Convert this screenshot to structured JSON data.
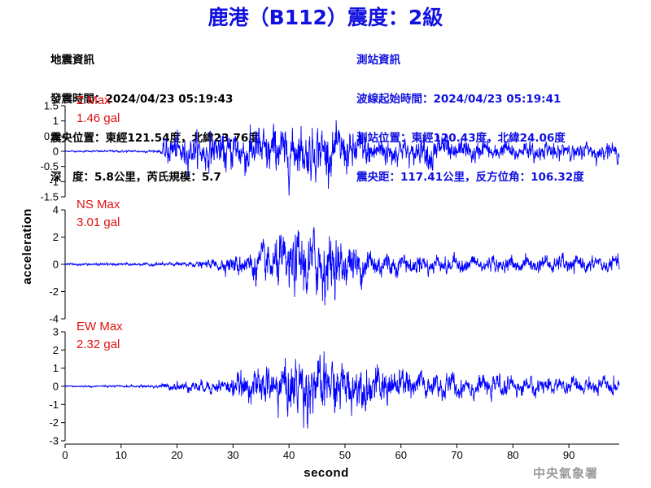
{
  "title": "鹿港（B112）震度：2級",
  "info_left": {
    "heading": "地震資訊",
    "origin_time": "發震時間：2024/04/23 05:19:43",
    "epicenter": "震央位置：東經121.54度，北緯23.76度",
    "depth_magnitude": "深　度：5.8公里，芮氏規模：5.7"
  },
  "info_right": {
    "heading": "測站資訊",
    "wave_start": "波線起始時間：2024/04/23 05:19:41",
    "station_location": "測站位置：東經120.43度，北緯24.06度",
    "distance_azimuth": "震央距：117.41公里，反方位角：106.32度"
  },
  "footer_mark": "中央氣象署",
  "chart_data": {
    "type": "line",
    "xlabel": "second",
    "ylabel": "acceleration",
    "xlim": [
      0,
      99
    ],
    "x_ticks": [
      0,
      10,
      20,
      30,
      40,
      50,
      60,
      70,
      80,
      90
    ],
    "line_color": "#0000ff",
    "panels": [
      {
        "name": "Z",
        "label_line1": "Z Max",
        "label_line2": "1.46 gal",
        "peak": 1.46,
        "ylim": [
          -1.5,
          1.5
        ],
        "y_ticks": [
          1.5,
          1,
          0.5,
          0,
          -0.5,
          -1,
          -1.5
        ],
        "y_tick_labels": [
          "1.5",
          "1",
          "0.5",
          "0",
          "-0.5",
          "-1",
          "-1.5"
        ],
        "envelope_t": [
          0,
          17,
          18,
          22,
          30,
          35,
          45,
          55,
          62,
          66,
          70,
          80,
          90,
          99
        ],
        "envelope_a": [
          0.03,
          0.05,
          0.6,
          0.6,
          0.8,
          0.95,
          1.0,
          0.65,
          0.45,
          0.75,
          0.4,
          0.35,
          0.35,
          0.3
        ]
      },
      {
        "name": "NS",
        "label_line1": "NS Max",
        "label_line2": "3.01 gal",
        "peak": 3.01,
        "ylim": [
          -4,
          4
        ],
        "y_ticks": [
          4,
          2,
          0,
          -2,
          -4
        ],
        "y_tick_labels": [
          "4",
          "2",
          "0",
          "-2",
          "-4"
        ],
        "envelope_t": [
          0,
          17,
          25,
          32,
          38,
          45,
          50,
          55,
          60,
          70,
          80,
          90,
          99
        ],
        "envelope_a": [
          0.08,
          0.12,
          0.25,
          0.9,
          1.8,
          2.6,
          1.6,
          1.2,
          0.7,
          0.6,
          0.5,
          0.6,
          0.5
        ]
      },
      {
        "name": "EW",
        "label_line1": "EW Max",
        "label_line2": "2.32 gal",
        "peak": 2.32,
        "ylim": [
          -3,
          3
        ],
        "y_ticks": [
          3,
          2,
          1,
          0,
          -1,
          -2,
          -3
        ],
        "y_tick_labels": [
          "3",
          "2",
          "1",
          "0",
          "-1",
          "-2",
          "-3"
        ],
        "envelope_t": [
          0,
          15,
          20,
          28,
          35,
          42,
          47,
          52,
          58,
          65,
          75,
          85,
          99
        ],
        "envelope_a": [
          0.05,
          0.07,
          0.3,
          0.45,
          1.1,
          1.9,
          1.7,
          1.3,
          1.1,
          0.8,
          0.55,
          0.5,
          0.45
        ]
      }
    ]
  }
}
